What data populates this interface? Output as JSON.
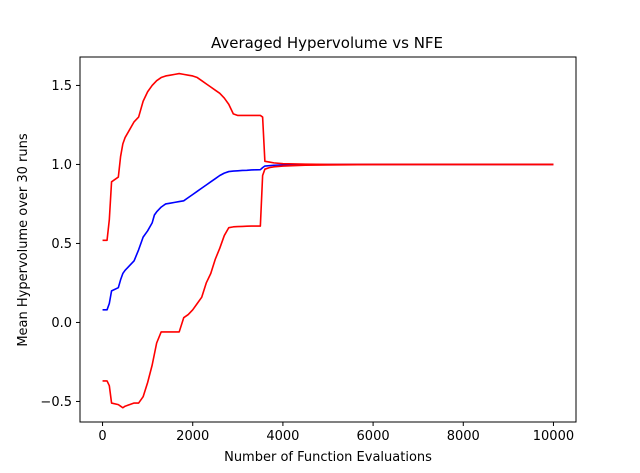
{
  "chart_data": {
    "type": "line",
    "title": "Averaged Hypervolume vs NFE",
    "xlabel": "Number of Function Evaluations",
    "ylabel": "Mean Hypervolume over 30 runs",
    "xlim": [
      -500,
      10500
    ],
    "ylim": [
      -0.63,
      1.68
    ],
    "xticks": [
      0,
      2000,
      4000,
      6000,
      8000,
      10000
    ],
    "yticks": [
      -0.5,
      0.0,
      0.5,
      1.0,
      1.5
    ],
    "xtick_labels": [
      "0",
      "2000",
      "4000",
      "6000",
      "8000",
      "10000"
    ],
    "ytick_labels": [
      "−0.5",
      "0.0",
      "0.5",
      "1.0",
      "1.5"
    ],
    "grid": false,
    "colors": {
      "mean": "#0000ff",
      "upper": "#ff0000",
      "lower": "#ff0000"
    },
    "series": [
      {
        "key": "mean",
        "x": [
          0,
          100,
          150,
          200,
          350,
          400,
          450,
          500,
          600,
          700,
          800,
          900,
          1000,
          1100,
          1150,
          1200,
          1300,
          1350,
          1400,
          1500,
          1600,
          1700,
          1800,
          1900,
          2000,
          2100,
          2200,
          2300,
          2400,
          2500,
          2600,
          2700,
          2800,
          2900,
          3000,
          3100,
          3200,
          3300,
          3400,
          3500,
          3550,
          3600,
          3800,
          4000,
          4500,
          5000,
          6000,
          7000,
          8000,
          9000,
          10000
        ],
        "y": [
          0.08,
          0.08,
          0.12,
          0.2,
          0.22,
          0.27,
          0.31,
          0.33,
          0.36,
          0.39,
          0.46,
          0.54,
          0.58,
          0.63,
          0.68,
          0.7,
          0.73,
          0.74,
          0.75,
          0.755,
          0.76,
          0.765,
          0.77,
          0.79,
          0.81,
          0.83,
          0.85,
          0.87,
          0.89,
          0.91,
          0.93,
          0.945,
          0.955,
          0.958,
          0.96,
          0.962,
          0.963,
          0.965,
          0.966,
          0.967,
          0.98,
          0.99,
          0.995,
          0.997,
          0.998,
          0.999,
          1.0,
          1.0,
          1.0,
          1.0,
          1.0
        ]
      },
      {
        "key": "upper",
        "x": [
          0,
          100,
          150,
          200,
          350,
          400,
          450,
          500,
          600,
          700,
          800,
          900,
          1000,
          1100,
          1200,
          1300,
          1400,
          1500,
          1600,
          1700,
          1800,
          1900,
          2000,
          2100,
          2200,
          2300,
          2400,
          2500,
          2600,
          2700,
          2800,
          2900,
          3000,
          3100,
          3200,
          3300,
          3400,
          3500,
          3550,
          3600,
          3700,
          3800,
          4000,
          4500,
          5000,
          6000,
          7000,
          8000,
          9000,
          10000
        ],
        "y": [
          0.52,
          0.52,
          0.65,
          0.89,
          0.92,
          1.05,
          1.13,
          1.17,
          1.22,
          1.27,
          1.3,
          1.4,
          1.46,
          1.5,
          1.53,
          1.55,
          1.56,
          1.565,
          1.57,
          1.575,
          1.57,
          1.565,
          1.56,
          1.55,
          1.53,
          1.51,
          1.49,
          1.47,
          1.45,
          1.42,
          1.38,
          1.32,
          1.31,
          1.31,
          1.31,
          1.31,
          1.31,
          1.31,
          1.3,
          1.02,
          1.015,
          1.01,
          1.005,
          1.002,
          1.0,
          1.0,
          1.0,
          1.0,
          1.0,
          1.0
        ]
      },
      {
        "key": "lower",
        "x": [
          0,
          100,
          150,
          200,
          350,
          400,
          450,
          500,
          600,
          700,
          800,
          900,
          1000,
          1100,
          1200,
          1300,
          1400,
          1500,
          1600,
          1700,
          1800,
          1900,
          2000,
          2100,
          2200,
          2300,
          2400,
          2500,
          2600,
          2700,
          2800,
          2900,
          3000,
          3100,
          3200,
          3300,
          3400,
          3500,
          3550,
          3600,
          3700,
          3800,
          4000,
          4500,
          5000,
          6000,
          7000,
          8000,
          9000,
          10000
        ],
        "y": [
          -0.37,
          -0.37,
          -0.4,
          -0.51,
          -0.52,
          -0.53,
          -0.54,
          -0.53,
          -0.52,
          -0.51,
          -0.51,
          -0.47,
          -0.38,
          -0.27,
          -0.13,
          -0.06,
          -0.06,
          -0.06,
          -0.06,
          -0.06,
          0.03,
          0.05,
          0.08,
          0.12,
          0.16,
          0.25,
          0.31,
          0.4,
          0.47,
          0.55,
          0.6,
          0.605,
          0.607,
          0.608,
          0.609,
          0.61,
          0.61,
          0.61,
          0.93,
          0.97,
          0.98,
          0.985,
          0.99,
          0.995,
          0.997,
          0.999,
          1.0,
          1.0,
          1.0,
          1.0
        ]
      }
    ]
  }
}
